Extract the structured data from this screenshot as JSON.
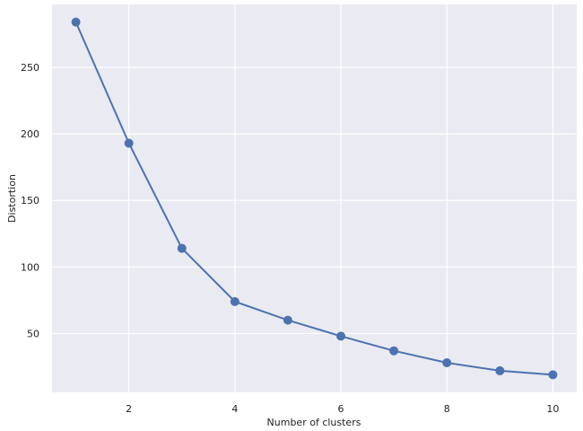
{
  "chart_data": {
    "type": "line",
    "x_label": "Number of clusters",
    "y_label": "Distortion",
    "x": [
      1,
      2,
      3,
      4,
      5,
      6,
      7,
      8,
      9,
      10
    ],
    "series": [
      {
        "name": "Distortion",
        "color": "#4c72b0",
        "values": [
          284,
          193,
          114,
          74,
          60,
          48,
          37,
          28,
          22,
          19
        ]
      }
    ],
    "xlim": [
      0.55,
      10.45
    ],
    "ylim": [
      5.75,
      297.25
    ],
    "xticks": [
      2,
      4,
      6,
      8,
      10
    ],
    "yticks": [
      50,
      100,
      150,
      200,
      250
    ],
    "grid": true,
    "background": "#eaeaf2"
  }
}
